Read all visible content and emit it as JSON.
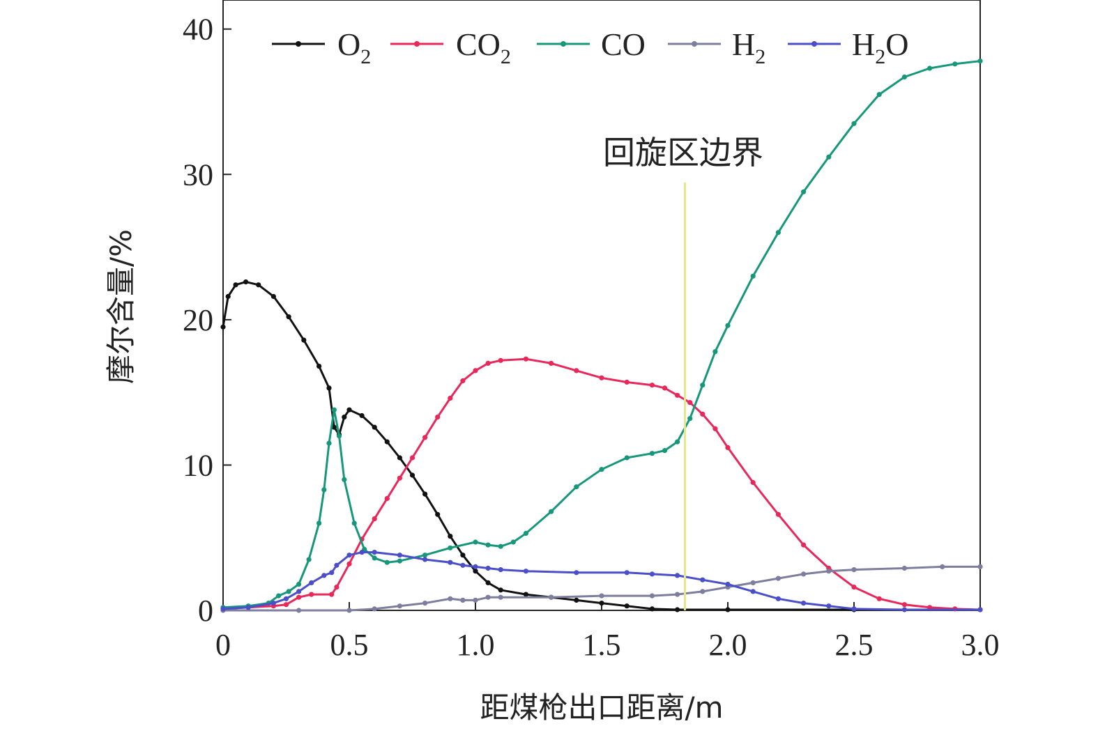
{
  "chart_data": {
    "type": "line",
    "xlabel": "距煤枪出口距离/m",
    "ylabel": "摩尔含量/%",
    "xlim": [
      0,
      3.0
    ],
    "ylim": [
      0,
      42
    ],
    "xticks": [
      0,
      0.5,
      1.0,
      1.5,
      2.0,
      2.5,
      3.0
    ],
    "xtick_labels": [
      "0",
      "0.5",
      "1.0",
      "1.5",
      "2.0",
      "2.5",
      "3.0"
    ],
    "yticks": [
      0,
      10,
      20,
      30,
      40
    ],
    "ytick_labels": [
      "0",
      "10",
      "20",
      "30",
      "40"
    ],
    "grid": false,
    "legend_position": "top",
    "annotation": {
      "text": "回旋区边界",
      "x": 1.83
    },
    "series": [
      {
        "name": "O₂",
        "base": "O",
        "sub": "2",
        "color": "#111111",
        "points": [
          [
            0,
            19.5
          ],
          [
            0.02,
            21.6
          ],
          [
            0.05,
            22.4
          ],
          [
            0.09,
            22.6
          ],
          [
            0.14,
            22.4
          ],
          [
            0.2,
            21.6
          ],
          [
            0.26,
            20.2
          ],
          [
            0.32,
            18.6
          ],
          [
            0.38,
            16.8
          ],
          [
            0.42,
            15.3
          ],
          [
            0.44,
            12.6
          ],
          [
            0.46,
            12.1
          ],
          [
            0.48,
            13.3
          ],
          [
            0.5,
            13.8
          ],
          [
            0.55,
            13.4
          ],
          [
            0.6,
            12.6
          ],
          [
            0.65,
            11.6
          ],
          [
            0.7,
            10.5
          ],
          [
            0.75,
            9.3
          ],
          [
            0.8,
            8.0
          ],
          [
            0.85,
            6.6
          ],
          [
            0.9,
            5.1
          ],
          [
            0.95,
            3.8
          ],
          [
            1.0,
            2.7
          ],
          [
            1.05,
            1.9
          ],
          [
            1.1,
            1.4
          ],
          [
            1.2,
            1.1
          ],
          [
            1.3,
            0.9
          ],
          [
            1.4,
            0.7
          ],
          [
            1.5,
            0.5
          ],
          [
            1.6,
            0.3
          ],
          [
            1.7,
            0.1
          ],
          [
            1.8,
            0.05
          ],
          [
            2.0,
            0.05
          ],
          [
            2.5,
            0.05
          ],
          [
            3.0,
            0.05
          ]
        ]
      },
      {
        "name": "CO₂",
        "base": "CO",
        "sub": "2",
        "color": "#e8285a",
        "points": [
          [
            0,
            0.1
          ],
          [
            0.1,
            0.2
          ],
          [
            0.2,
            0.3
          ],
          [
            0.25,
            0.4
          ],
          [
            0.3,
            0.9
          ],
          [
            0.35,
            1.1
          ],
          [
            0.43,
            1.1
          ],
          [
            0.45,
            1.6
          ],
          [
            0.5,
            3.2
          ],
          [
            0.55,
            4.9
          ],
          [
            0.6,
            6.3
          ],
          [
            0.65,
            7.7
          ],
          [
            0.7,
            9.1
          ],
          [
            0.75,
            10.5
          ],
          [
            0.8,
            11.9
          ],
          [
            0.85,
            13.3
          ],
          [
            0.9,
            14.6
          ],
          [
            0.95,
            15.8
          ],
          [
            1.0,
            16.5
          ],
          [
            1.05,
            17.0
          ],
          [
            1.1,
            17.2
          ],
          [
            1.2,
            17.3
          ],
          [
            1.3,
            17.0
          ],
          [
            1.4,
            16.5
          ],
          [
            1.5,
            16.0
          ],
          [
            1.6,
            15.7
          ],
          [
            1.7,
            15.5
          ],
          [
            1.75,
            15.3
          ],
          [
            1.8,
            14.8
          ],
          [
            1.85,
            14.3
          ],
          [
            1.9,
            13.5
          ],
          [
            1.95,
            12.5
          ],
          [
            2.0,
            11.2
          ],
          [
            2.1,
            8.8
          ],
          [
            2.2,
            6.6
          ],
          [
            2.3,
            4.5
          ],
          [
            2.4,
            2.9
          ],
          [
            2.5,
            1.6
          ],
          [
            2.6,
            0.8
          ],
          [
            2.7,
            0.4
          ],
          [
            2.8,
            0.2
          ],
          [
            2.9,
            0.1
          ],
          [
            3.0,
            0.05
          ]
        ]
      },
      {
        "name": "CO",
        "base": "CO",
        "sub": "",
        "color": "#17977a",
        "points": [
          [
            0,
            0.2
          ],
          [
            0.1,
            0.3
          ],
          [
            0.18,
            0.5
          ],
          [
            0.22,
            1.0
          ],
          [
            0.26,
            1.3
          ],
          [
            0.3,
            1.8
          ],
          [
            0.34,
            3.5
          ],
          [
            0.38,
            6.0
          ],
          [
            0.4,
            8.3
          ],
          [
            0.42,
            11.5
          ],
          [
            0.44,
            13.8
          ],
          [
            0.46,
            12.0
          ],
          [
            0.48,
            9.0
          ],
          [
            0.52,
            6.0
          ],
          [
            0.56,
            4.2
          ],
          [
            0.6,
            3.6
          ],
          [
            0.65,
            3.3
          ],
          [
            0.7,
            3.4
          ],
          [
            0.8,
            3.8
          ],
          [
            0.9,
            4.3
          ],
          [
            1.0,
            4.7
          ],
          [
            1.05,
            4.5
          ],
          [
            1.1,
            4.4
          ],
          [
            1.15,
            4.7
          ],
          [
            1.2,
            5.3
          ],
          [
            1.3,
            6.8
          ],
          [
            1.4,
            8.5
          ],
          [
            1.5,
            9.7
          ],
          [
            1.6,
            10.5
          ],
          [
            1.7,
            10.8
          ],
          [
            1.75,
            11.0
          ],
          [
            1.8,
            11.6
          ],
          [
            1.85,
            13.2
          ],
          [
            1.9,
            15.5
          ],
          [
            1.95,
            17.8
          ],
          [
            2.0,
            19.6
          ],
          [
            2.1,
            23.0
          ],
          [
            2.2,
            26.0
          ],
          [
            2.3,
            28.8
          ],
          [
            2.4,
            31.2
          ],
          [
            2.5,
            33.5
          ],
          [
            2.6,
            35.5
          ],
          [
            2.7,
            36.7
          ],
          [
            2.8,
            37.3
          ],
          [
            2.9,
            37.6
          ],
          [
            3.0,
            37.8
          ]
        ]
      },
      {
        "name": "H₂",
        "base": "H",
        "sub": "2",
        "color": "#7d7d9d",
        "points": [
          [
            0,
            0
          ],
          [
            0.3,
            0
          ],
          [
            0.5,
            0
          ],
          [
            0.6,
            0.1
          ],
          [
            0.7,
            0.3
          ],
          [
            0.8,
            0.5
          ],
          [
            0.9,
            0.8
          ],
          [
            0.95,
            0.7
          ],
          [
            1.0,
            0.7
          ],
          [
            1.05,
            0.9
          ],
          [
            1.1,
            0.9
          ],
          [
            1.3,
            0.9
          ],
          [
            1.5,
            1.0
          ],
          [
            1.7,
            1.0
          ],
          [
            1.8,
            1.1
          ],
          [
            1.9,
            1.3
          ],
          [
            2.0,
            1.6
          ],
          [
            2.1,
            1.9
          ],
          [
            2.2,
            2.2
          ],
          [
            2.3,
            2.5
          ],
          [
            2.4,
            2.7
          ],
          [
            2.5,
            2.8
          ],
          [
            2.7,
            2.9
          ],
          [
            2.85,
            3.0
          ],
          [
            3.0,
            3.0
          ]
        ]
      },
      {
        "name": "H₂O",
        "base": "H",
        "sub": "2",
        "tail": "O",
        "color": "#4a4ec9",
        "points": [
          [
            0,
            0.1
          ],
          [
            0.1,
            0.2
          ],
          [
            0.2,
            0.5
          ],
          [
            0.25,
            0.8
          ],
          [
            0.3,
            1.3
          ],
          [
            0.35,
            1.9
          ],
          [
            0.4,
            2.4
          ],
          [
            0.43,
            2.6
          ],
          [
            0.45,
            3.1
          ],
          [
            0.5,
            3.8
          ],
          [
            0.55,
            4.0
          ],
          [
            0.6,
            4.0
          ],
          [
            0.7,
            3.8
          ],
          [
            0.8,
            3.5
          ],
          [
            0.9,
            3.3
          ],
          [
            0.95,
            3.1
          ],
          [
            1.0,
            3.0
          ],
          [
            1.05,
            2.9
          ],
          [
            1.1,
            2.8
          ],
          [
            1.2,
            2.7
          ],
          [
            1.4,
            2.6
          ],
          [
            1.6,
            2.6
          ],
          [
            1.7,
            2.5
          ],
          [
            1.8,
            2.4
          ],
          [
            1.9,
            2.1
          ],
          [
            2.0,
            1.8
          ],
          [
            2.1,
            1.3
          ],
          [
            2.2,
            0.8
          ],
          [
            2.3,
            0.5
          ],
          [
            2.4,
            0.3
          ],
          [
            2.5,
            0.1
          ],
          [
            2.7,
            0.05
          ],
          [
            3.0,
            0.05
          ]
        ]
      }
    ]
  }
}
